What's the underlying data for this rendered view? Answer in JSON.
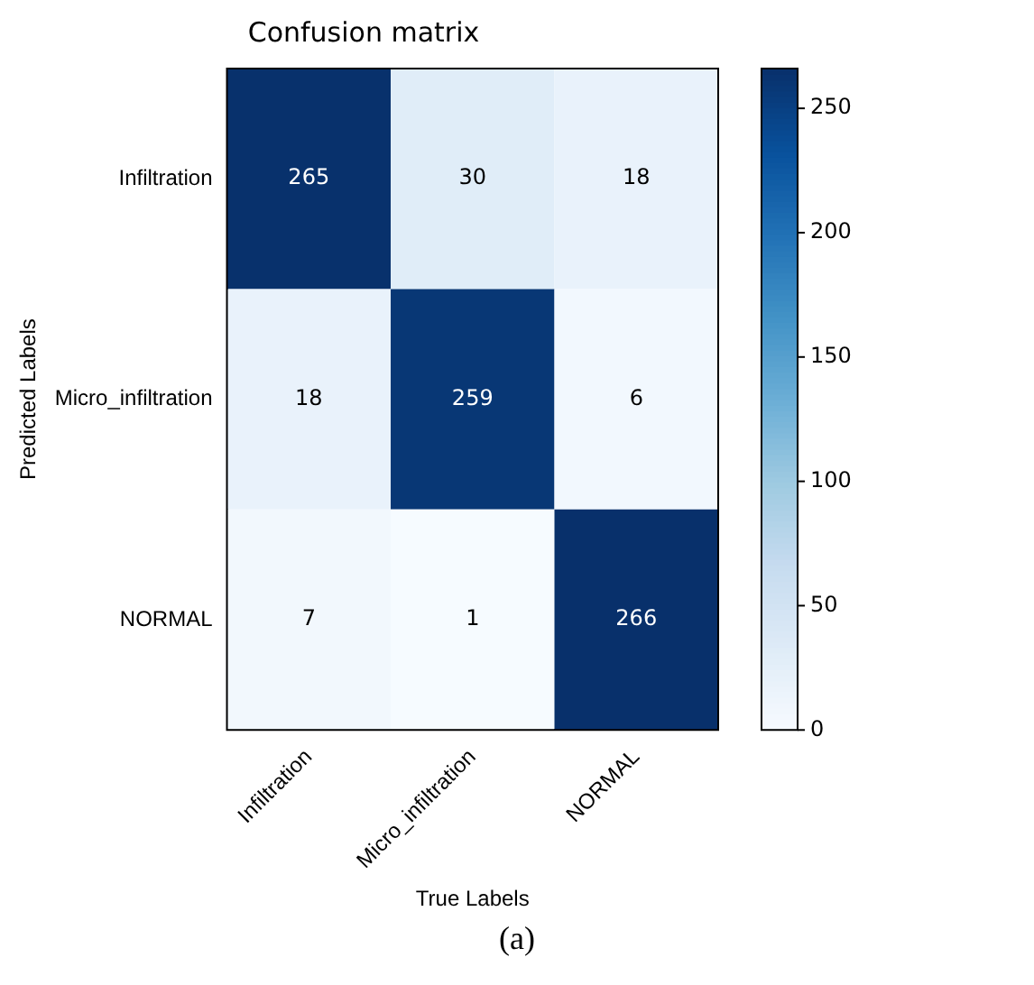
{
  "chart_data": {
    "type": "heatmap",
    "title": "Confusion matrix",
    "xlabel": "True Labels",
    "ylabel": "Predicted Labels",
    "categories": [
      "Infiltration",
      "Micro_infiltration",
      "NORMAL"
    ],
    "y_categories": [
      "Infiltration",
      "Micro_infiltration",
      "NORMAL"
    ],
    "cells": [
      [
        265,
        30,
        18
      ],
      [
        18,
        259,
        6
      ],
      [
        7,
        1,
        266
      ]
    ],
    "clim": [
      0,
      266
    ],
    "cticks": [
      0,
      50,
      100,
      150,
      200,
      250
    ],
    "data_labels": true,
    "annotations": [
      "(a)"
    ]
  }
}
